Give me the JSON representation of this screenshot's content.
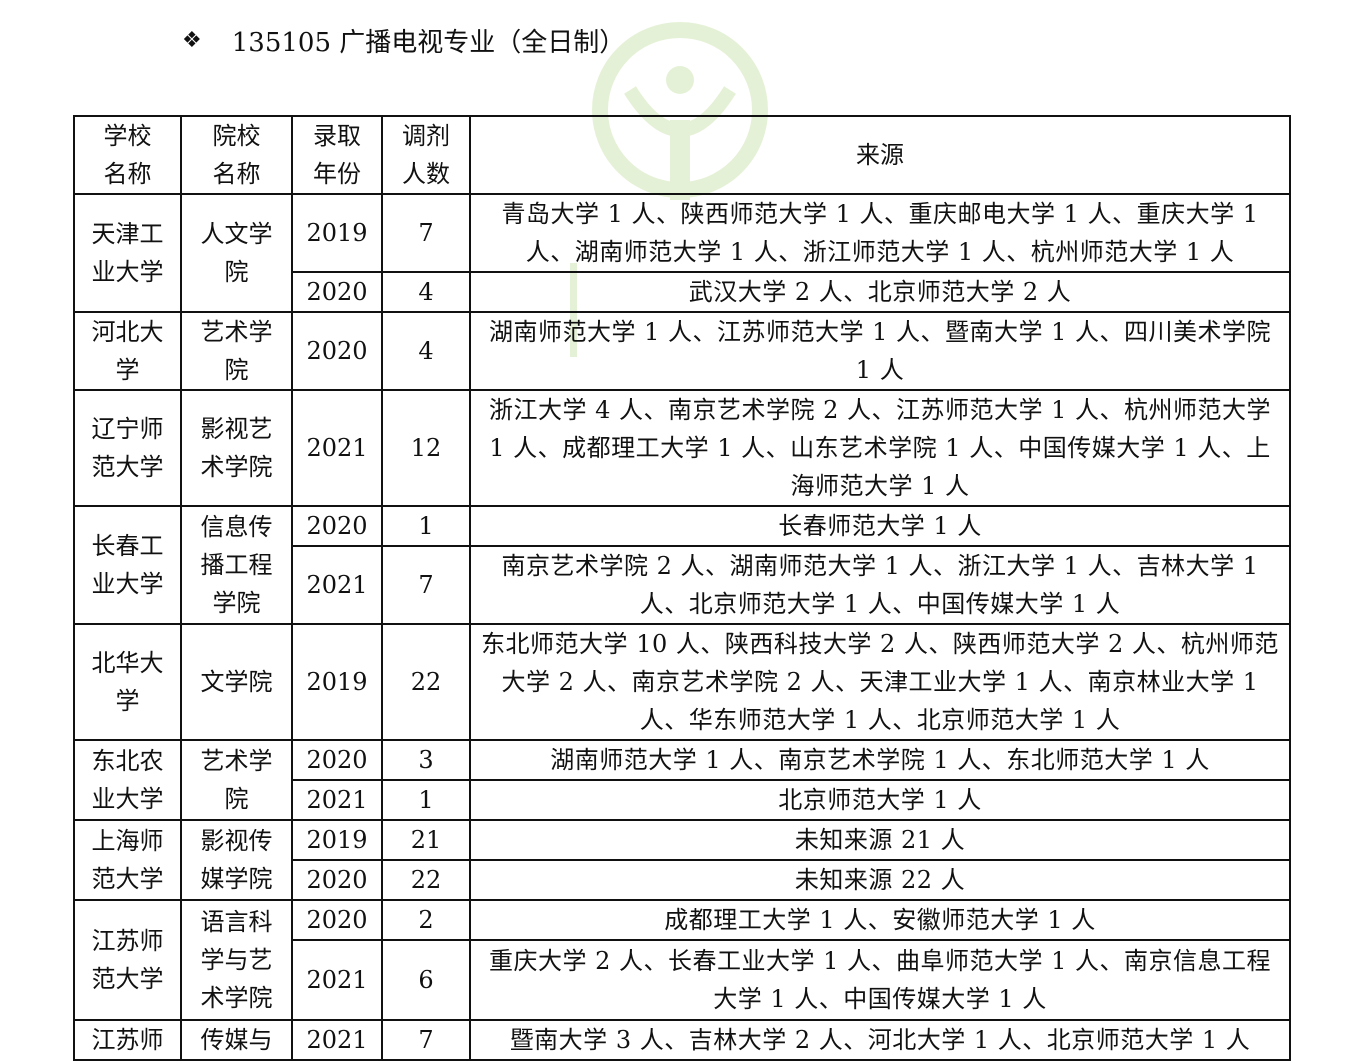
{
  "doc": {
    "bullet": "❖",
    "title": "135105 广播电视专业（全日制）",
    "watermark_color": "#8bc34a"
  },
  "table": {
    "headers": [
      "学校\n名称",
      "院校\n名称",
      "录取\n年份",
      "调剂\n人数",
      "来源"
    ],
    "groups": [
      {
        "school": "天津工\n业大学",
        "college": "人文学\n院",
        "rows": [
          {
            "year": "2019",
            "count": "7",
            "source": "青岛大学 1 人、陕西师范大学 1 人、重庆邮电大学 1 人、重庆大学 1 人、湖南师范大学 1 人、浙江师范大学 1 人、杭州师范大学 1 人"
          },
          {
            "year": "2020",
            "count": "4",
            "source": "武汉大学 2 人、北京师范大学 2 人"
          }
        ]
      },
      {
        "school": "河北大\n学",
        "college": "艺术学\n院",
        "rows": [
          {
            "year": "2020",
            "count": "4",
            "source": "湖南师范大学 1 人、江苏师范大学 1 人、暨南大学 1 人、四川美术学院 1 人"
          }
        ]
      },
      {
        "school": "辽宁师\n范大学",
        "college": "影视艺\n术学院",
        "rows": [
          {
            "year": "2021",
            "count": "12",
            "source": "浙江大学 4 人、南京艺术学院 2 人、江苏师范大学 1 人、杭州师范大学 1 人、成都理工大学 1 人、山东艺术学院 1 人、中国传媒大学 1 人、上海师范大学 1 人"
          }
        ]
      },
      {
        "school": "长春工\n业大学",
        "college": "信息传\n播工程\n学院",
        "rows": [
          {
            "year": "2020",
            "count": "1",
            "source": "长春师范大学 1 人"
          },
          {
            "year": "2021",
            "count": "7",
            "source": "南京艺术学院 2 人、湖南师范大学 1 人、浙江大学 1 人、吉林大学 1 人、北京师范大学 1 人、中国传媒大学 1 人"
          }
        ]
      },
      {
        "school": "北华大\n学",
        "college": "文学院",
        "rows": [
          {
            "year": "2019",
            "count": "22",
            "source": "东北师范大学 10 人、陕西科技大学 2 人、陕西师范大学 2 人、杭州师范大学 2 人、南京艺术学院 2 人、天津工业大学 1 人、南京林业大学 1 人、华东师范大学 1 人、北京师范大学 1 人"
          }
        ]
      },
      {
        "school": "东北农\n业大学",
        "college": "艺术学\n院",
        "rows": [
          {
            "year": "2020",
            "count": "3",
            "source": "湖南师范大学 1 人、南京艺术学院 1 人、东北师范大学 1 人"
          },
          {
            "year": "2021",
            "count": "1",
            "source": "北京师范大学 1 人"
          }
        ]
      },
      {
        "school": "上海师\n范大学",
        "college": "影视传\n媒学院",
        "rows": [
          {
            "year": "2019",
            "count": "21",
            "source": "未知来源 21 人"
          },
          {
            "year": "2020",
            "count": "22",
            "source": "未知来源 22 人"
          }
        ]
      },
      {
        "school": "江苏师\n范大学",
        "college": "语言科\n学与艺\n术学院",
        "rows": [
          {
            "year": "2020",
            "count": "2",
            "source": "成都理工大学 1 人、安徽师范大学 1 人"
          },
          {
            "year": "2021",
            "count": "6",
            "source": "重庆大学 2 人、长春工业大学 1 人、曲阜师范大学 1 人、南京信息工程大学 1 人、中国传媒大学 1 人"
          }
        ]
      },
      {
        "school": "江苏师",
        "college": "传媒与",
        "rows": [
          {
            "year": "2021",
            "count": "7",
            "source": "暨南大学 3 人、吉林大学 2 人、河北大学 1 人、北京师范大学 1 人"
          }
        ]
      }
    ]
  }
}
